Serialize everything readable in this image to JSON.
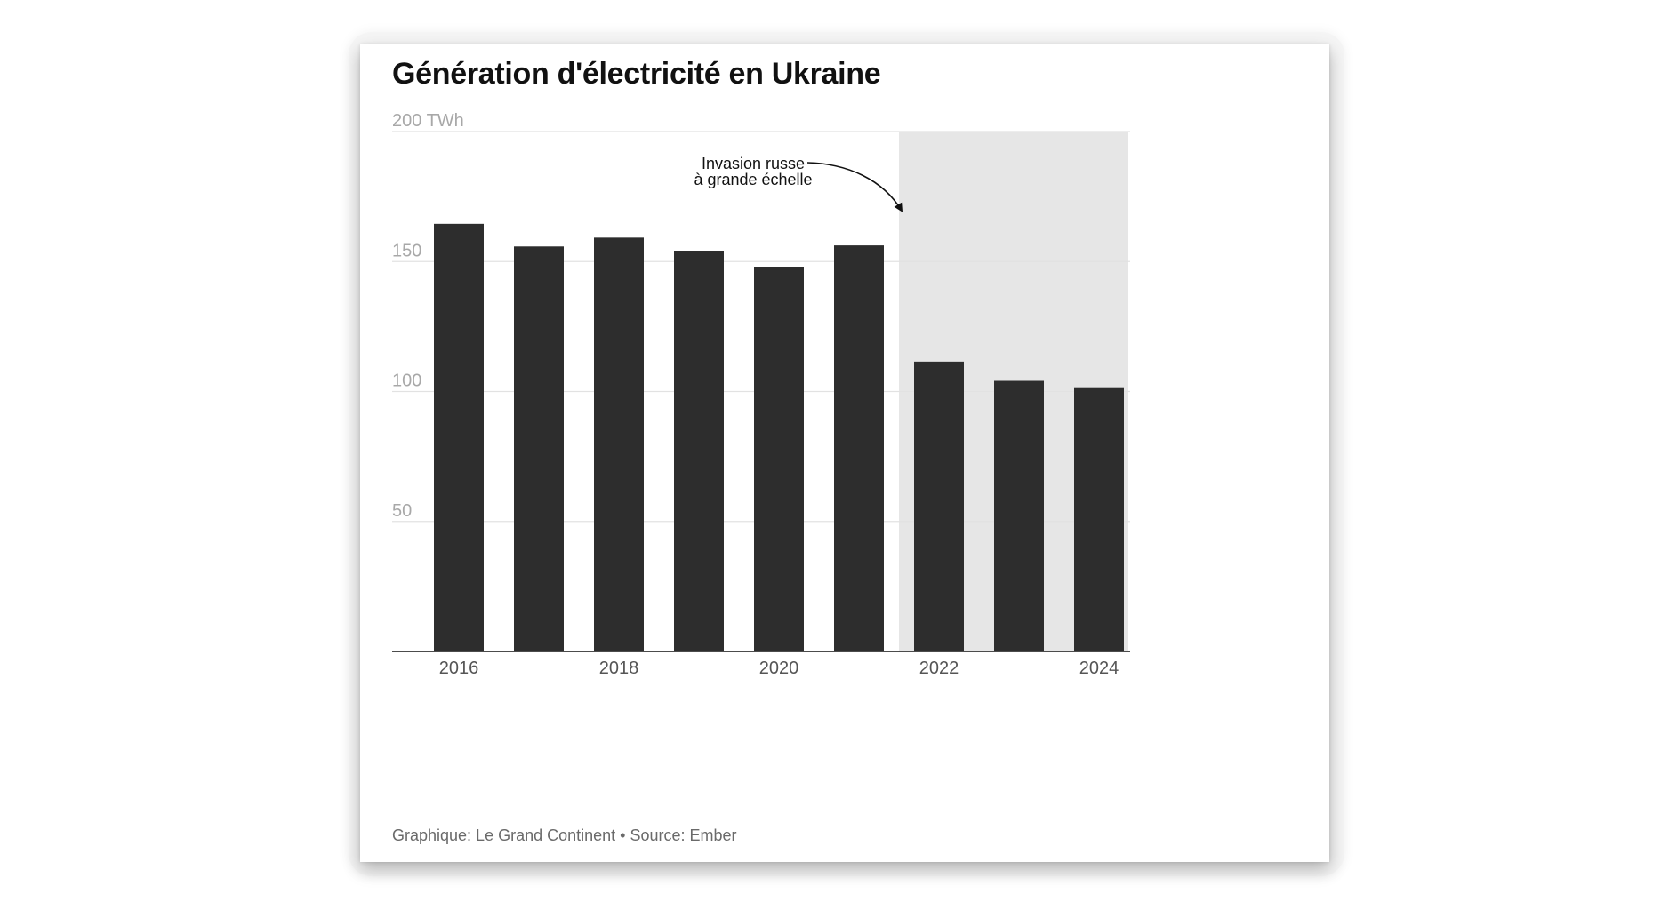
{
  "chart_data": {
    "type": "bar",
    "title": "Génération d'électricité en Ukraine",
    "ylabel": "",
    "xlabel": "",
    "ylim": [
      0,
      200
    ],
    "y_ticks": [
      50,
      100,
      150,
      200
    ],
    "y_tick_labels": [
      "50",
      "100",
      "150",
      "200 TWh"
    ],
    "x_tick_labels": [
      "2016",
      "",
      "2018",
      "",
      "2020",
      "",
      "2022",
      "",
      "2024"
    ],
    "categories": [
      "2016",
      "2017",
      "2018",
      "2019",
      "2020",
      "2021",
      "2022",
      "2023",
      "2024"
    ],
    "values": [
      164.5,
      155.8,
      159.2,
      153.9,
      147.8,
      156.2,
      111.5,
      104.1,
      101.3
    ],
    "grid": true,
    "legend": "none",
    "shaded_region": {
      "from": "2022",
      "to": "2024",
      "color": "#e6e6e6"
    },
    "annotation": {
      "lines": [
        "Invasion russe",
        "à grande échelle"
      ],
      "points_to": "2022"
    },
    "bar_color": "#2d2d2d",
    "source": "Graphique: Le Grand Continent • Source: Ember"
  }
}
